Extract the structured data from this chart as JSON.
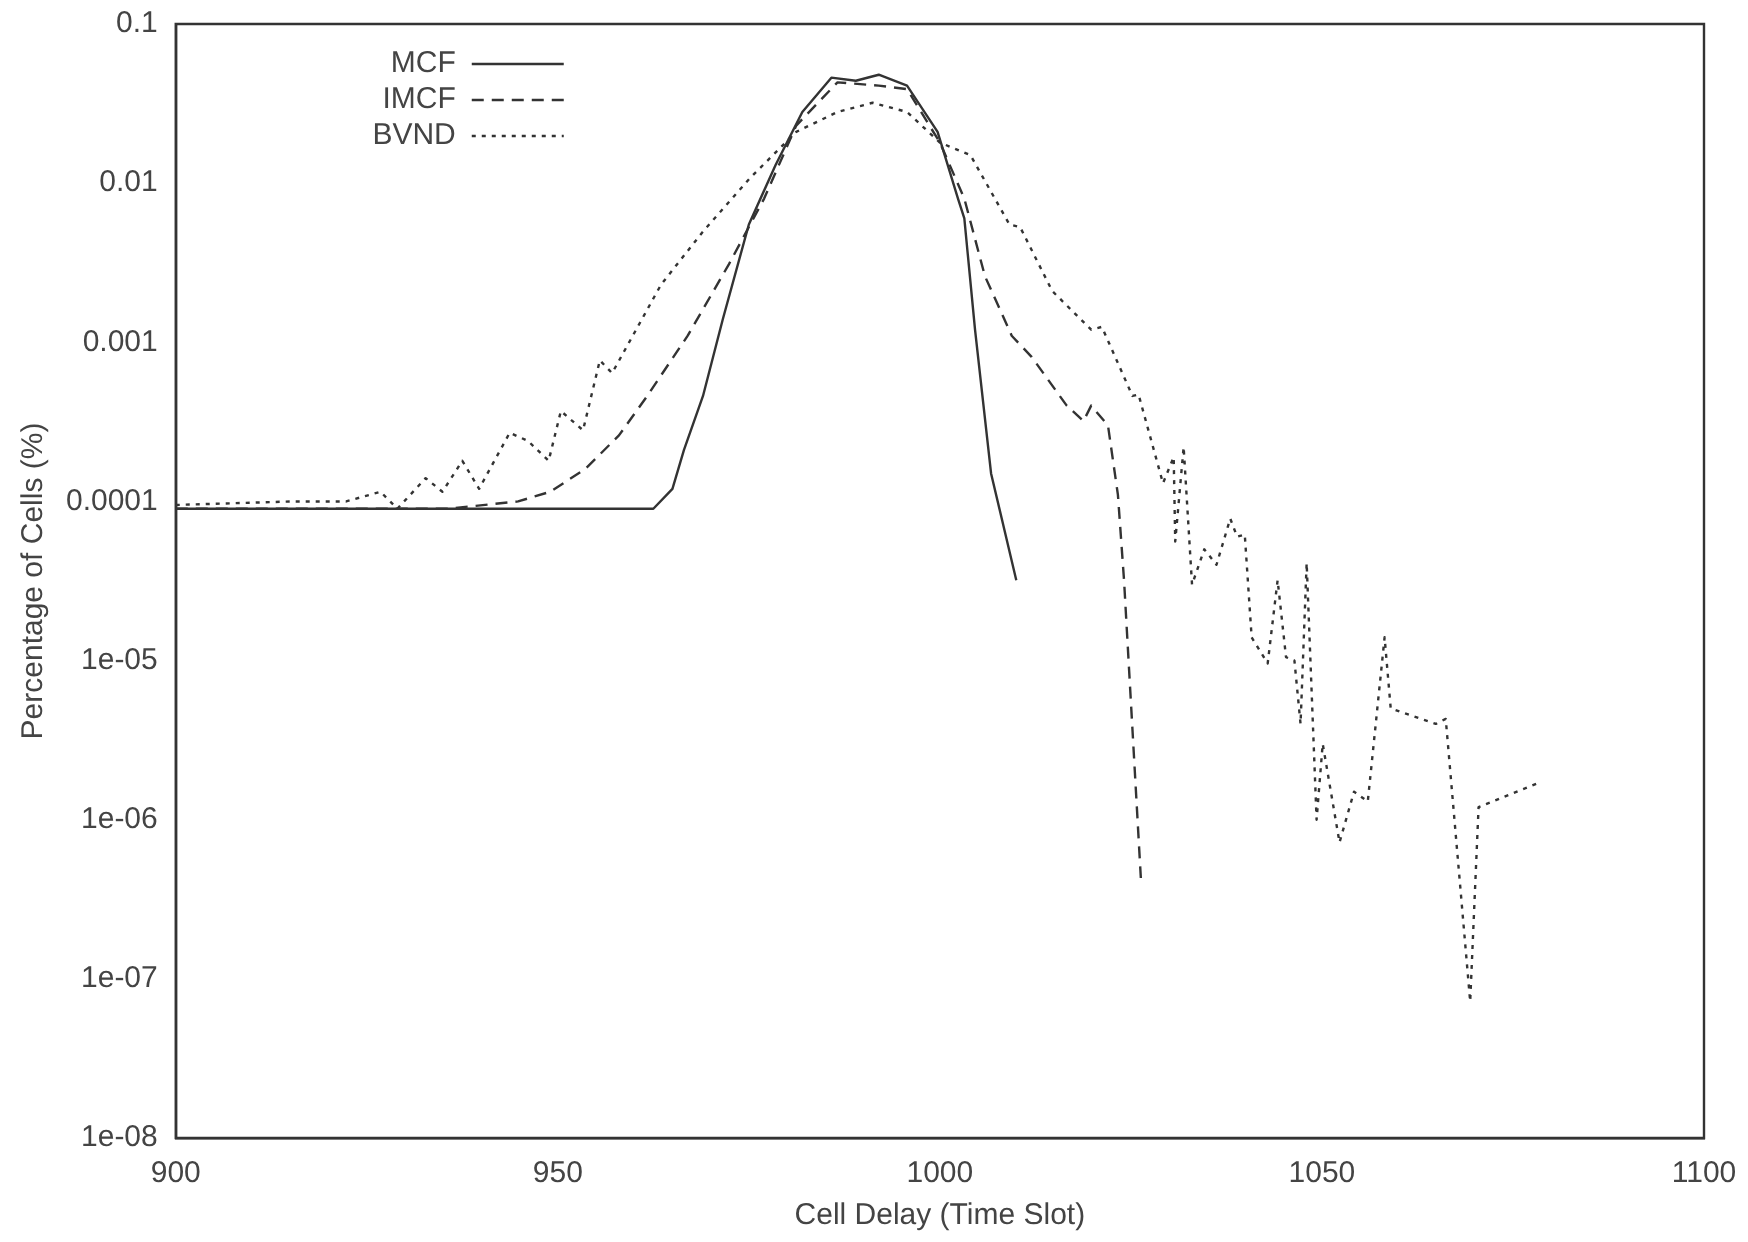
{
  "chart_data": {
    "type": "line",
    "xlabel": "Cell Delay (Time Slot)",
    "ylabel": "Percentage of Cells (%)",
    "xlim": [
      900,
      1100
    ],
    "xticks": [
      900,
      950,
      1000,
      1050,
      1100
    ],
    "ylim": [
      1e-08,
      0.1
    ],
    "yticks": [
      {
        "value": 1e-08,
        "label": "1e-08"
      },
      {
        "value": 1e-07,
        "label": "1e-07"
      },
      {
        "value": 1e-06,
        "label": "1e-06"
      },
      {
        "value": 1e-05,
        "label": "1e-05"
      },
      0.0001,
      0.001,
      0.01,
      0.1
    ],
    "log": "y",
    "grid": false,
    "legend": "top left",
    "marker": "none",
    "series": [
      {
        "name": "MCF",
        "color": "#333333",
        "line_style": "solid",
        "x": [
          900,
          910,
          920,
          930,
          940,
          950,
          962.5,
          965,
          966.5,
          969,
          971.6,
          975,
          978.5,
          982,
          985.8,
          989,
          992,
          995.7,
          999.7,
          1002.4,
          1003.2,
          1004.6,
          1006.7,
          1010
        ],
        "values": [
          9e-05,
          9e-05,
          9e-05,
          9e-05,
          9e-05,
          9e-05,
          9e-05,
          0.00012,
          0.00021,
          0.00046,
          0.0014,
          0.0055,
          0.013,
          0.028,
          0.046,
          0.044,
          0.048,
          0.041,
          0.021,
          0.0079,
          0.006,
          0.0012,
          0.00015,
          3.2e-05
        ]
      },
      {
        "name": "IMCF",
        "color": "#333333",
        "line_style": "dashed",
        "x": [
          900,
          920,
          935.6,
          944.8,
          949,
          953.6,
          958,
          961.7,
          967,
          972.4,
          977,
          981.2,
          986.6,
          992,
          995.7,
          1000,
          1003.2,
          1005.9,
          1009.4,
          1012,
          1016.6,
          1018.8,
          1019.8,
          1022,
          1023.3,
          1024.1,
          1026.3
        ],
        "values": [
          9e-05,
          9e-05,
          9e-05,
          0.0001,
          0.000115,
          0.00016,
          0.00026,
          0.00046,
          0.0011,
          0.0031,
          0.008,
          0.023,
          0.043,
          0.041,
          0.039,
          0.018,
          0.008,
          0.0026,
          0.0011,
          0.00081,
          0.0004,
          0.00032,
          0.0004,
          0.0003,
          0.00011,
          3.2e-05,
          4.3e-07
        ]
      },
      {
        "name": "BVND",
        "color": "#333333",
        "line_style": "dotted",
        "x": [
          900,
          915.3,
          922.3,
          926.8,
          929,
          932.7,
          934.9,
          937.5,
          939.7,
          943.7,
          946.1,
          948.8,
          950.4,
          953.3,
          955.5,
          957.1,
          963.5,
          968.9,
          975.1,
          981.2,
          986.6,
          991.2,
          995.7,
          1000,
          1004,
          1009.1,
          1010.5,
          1014.7,
          1019.8,
          1021.2,
          1025.2,
          1026,
          1029.2,
          1030.6,
          1030.8,
          1031.9,
          1033,
          1034.6,
          1036.2,
          1038,
          1038.9,
          1039.9,
          1040.8,
          1042.9,
          1044.2,
          1045.3,
          1046.4,
          1047.2,
          1048,
          1049.3,
          1050.1,
          1052.3,
          1054.2,
          1056,
          1058.2,
          1059,
          1064.9,
          1066.2,
          1069.4,
          1070.5,
          1078.3
        ],
        "values": [
          9.5e-05,
          0.0001,
          0.0001,
          0.000115,
          9e-05,
          0.00014,
          0.000115,
          0.00018,
          0.00012,
          0.00027,
          0.00024,
          0.00018,
          0.00037,
          0.00028,
          0.00077,
          0.00064,
          0.0023,
          0.0049,
          0.0107,
          0.021,
          0.028,
          0.032,
          0.028,
          0.018,
          0.015,
          0.0055,
          0.0053,
          0.0021,
          0.0012,
          0.00125,
          0.00046,
          0.00047,
          0.00013,
          0.00019,
          5.6e-05,
          0.00022,
          3e-05,
          5e-05,
          4e-05,
          7.8e-05,
          6e-05,
          6.2e-05,
          1.4e-05,
          9.6e-06,
          3.2e-05,
          1.05e-05,
          1e-05,
          4e-06,
          4.1e-05,
          1e-06,
          3e-06,
          7.2e-07,
          1.5e-06,
          1.3e-06,
          1.4e-05,
          5e-06,
          4e-06,
          4.3e-06,
          7.2e-08,
          1.2e-06,
          1.7e-06
        ]
      }
    ]
  }
}
